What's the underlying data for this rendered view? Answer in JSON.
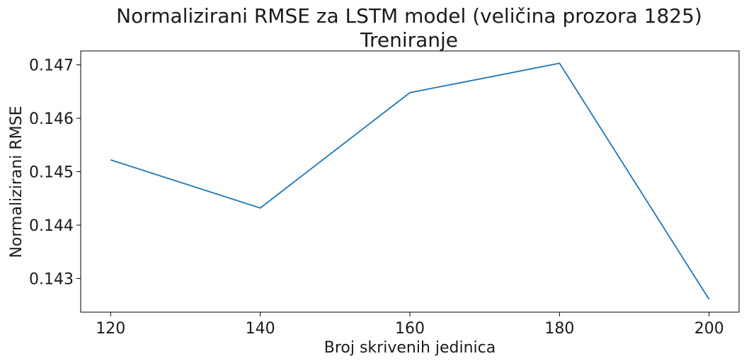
{
  "chart_data": {
    "type": "line",
    "title": "Normalizirani RMSE za LSTM model (veličina prozora 1825)",
    "subtitle": "Treniranje",
    "xlabel": "Broj skrivenih jedinica",
    "ylabel": "Normalizirani RMSE",
    "x": [
      120,
      140,
      160,
      180,
      200
    ],
    "series": [
      {
        "values": [
          0.14522,
          0.14432,
          0.14648,
          0.14703,
          0.14261
        ]
      }
    ],
    "xlim": [
      116,
      204
    ],
    "ylim": [
      0.14237,
      0.14726
    ],
    "xticks": [
      120,
      140,
      160,
      180,
      200
    ],
    "xtick_labels": [
      "120",
      "140",
      "160",
      "180",
      "200"
    ],
    "yticks": [
      0.143,
      0.144,
      0.145,
      0.146,
      0.147
    ],
    "ytick_labels": [
      "0.143",
      "0.144",
      "0.145",
      "0.146",
      "0.147"
    ],
    "grid": false,
    "line_color": "#1f77b4"
  }
}
